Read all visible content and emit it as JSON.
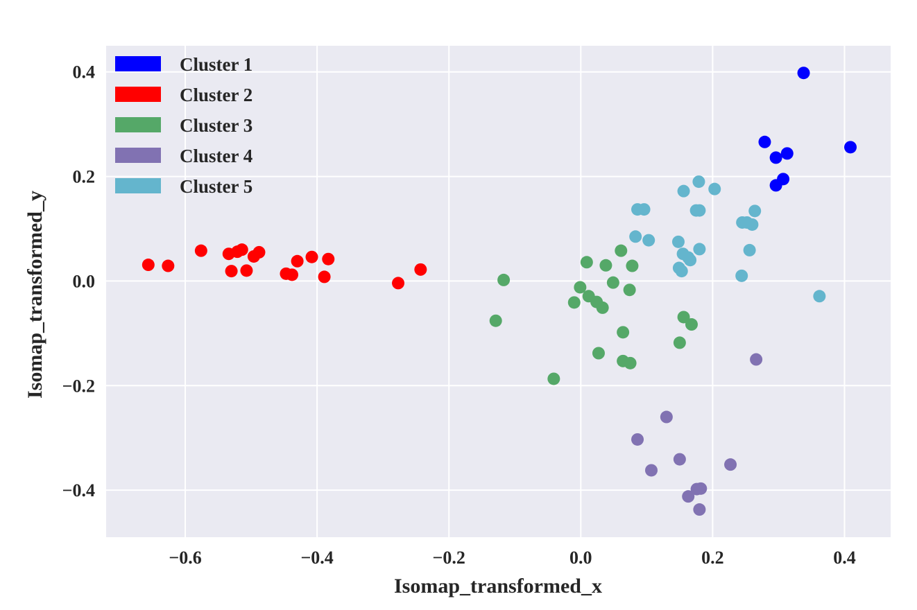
{
  "chart_data": {
    "type": "scatter",
    "title": "",
    "xlabel": "Isomap_transformed_x",
    "ylabel": "Isomap_transformed_y",
    "xlim": [
      -0.72,
      0.47
    ],
    "ylim": [
      -0.49,
      0.45
    ],
    "xticks": [
      -0.6,
      -0.4,
      -0.2,
      0.0,
      0.2,
      0.4
    ],
    "yticks": [
      -0.4,
      -0.2,
      0.0,
      0.2,
      0.4
    ],
    "xtick_labels": [
      "−0.6",
      "−0.4",
      "−0.2",
      "0.0",
      "0.2",
      "0.4"
    ],
    "ytick_labels": [
      "−0.4",
      "−0.2",
      "0.0",
      "0.2",
      "0.4"
    ],
    "grid": true,
    "background": "#eaeaf2",
    "legend_position": "top-left",
    "series": [
      {
        "name": "Cluster 1",
        "color": "#0000ff",
        "points": [
          [
            0.338,
            0.398
          ],
          [
            0.279,
            0.266
          ],
          [
            0.409,
            0.256
          ],
          [
            0.313,
            0.244
          ],
          [
            0.296,
            0.236
          ],
          [
            0.307,
            0.195
          ],
          [
            0.296,
            0.183
          ]
        ]
      },
      {
        "name": "Cluster 2",
        "color": "#ff0000",
        "points": [
          [
            -0.656,
            0.031
          ],
          [
            -0.626,
            0.029
          ],
          [
            -0.576,
            0.058
          ],
          [
            -0.534,
            0.052
          ],
          [
            -0.521,
            0.056
          ],
          [
            -0.514,
            0.06
          ],
          [
            -0.53,
            0.019
          ],
          [
            -0.507,
            0.02
          ],
          [
            -0.496,
            0.047
          ],
          [
            -0.488,
            0.055
          ],
          [
            -0.447,
            0.014
          ],
          [
            -0.438,
            0.012
          ],
          [
            -0.43,
            0.038
          ],
          [
            -0.408,
            0.046
          ],
          [
            -0.389,
            0.008
          ],
          [
            -0.383,
            0.042
          ],
          [
            -0.277,
            -0.004
          ],
          [
            -0.243,
            0.022
          ]
        ]
      },
      {
        "name": "Cluster 3",
        "color": "#55a868",
        "points": [
          [
            -0.117,
            0.002
          ],
          [
            -0.129,
            -0.076
          ],
          [
            0.009,
            0.036
          ],
          [
            0.038,
            0.03
          ],
          [
            0.061,
            0.058
          ],
          [
            0.078,
            0.029
          ],
          [
            -0.001,
            -0.012
          ],
          [
            0.012,
            -0.029
          ],
          [
            0.024,
            -0.04
          ],
          [
            0.033,
            -0.051
          ],
          [
            -0.01,
            -0.041
          ],
          [
            0.049,
            -0.003
          ],
          [
            0.074,
            -0.017
          ],
          [
            0.156,
            -0.069
          ],
          [
            0.168,
            -0.083
          ],
          [
            0.064,
            -0.098
          ],
          [
            0.15,
            -0.118
          ],
          [
            0.027,
            -0.138
          ],
          [
            0.064,
            -0.153
          ],
          [
            0.075,
            -0.157
          ],
          [
            -0.041,
            -0.187
          ]
        ]
      },
      {
        "name": "Cluster 4",
        "color": "#8172b2",
        "points": [
          [
            0.266,
            -0.15
          ],
          [
            0.13,
            -0.26
          ],
          [
            0.086,
            -0.303
          ],
          [
            0.15,
            -0.341
          ],
          [
            0.227,
            -0.351
          ],
          [
            0.107,
            -0.362
          ],
          [
            0.176,
            -0.398
          ],
          [
            0.182,
            -0.397
          ],
          [
            0.163,
            -0.412
          ],
          [
            0.18,
            -0.437
          ]
        ]
      },
      {
        "name": "Cluster 5",
        "color": "#64b5cd",
        "points": [
          [
            0.179,
            0.19
          ],
          [
            0.203,
            0.176
          ],
          [
            0.156,
            0.172
          ],
          [
            0.086,
            0.137
          ],
          [
            0.096,
            0.137
          ],
          [
            0.175,
            0.135
          ],
          [
            0.18,
            0.135
          ],
          [
            0.264,
            0.134
          ],
          [
            0.245,
            0.112
          ],
          [
            0.252,
            0.112
          ],
          [
            0.26,
            0.108
          ],
          [
            0.083,
            0.085
          ],
          [
            0.103,
            0.078
          ],
          [
            0.148,
            0.075
          ],
          [
            0.18,
            0.061
          ],
          [
            0.256,
            0.059
          ],
          [
            0.155,
            0.052
          ],
          [
            0.163,
            0.045
          ],
          [
            0.166,
            0.04
          ],
          [
            0.149,
            0.025
          ],
          [
            0.153,
            0.019
          ],
          [
            0.244,
            0.01
          ],
          [
            0.362,
            -0.029
          ]
        ]
      }
    ]
  }
}
